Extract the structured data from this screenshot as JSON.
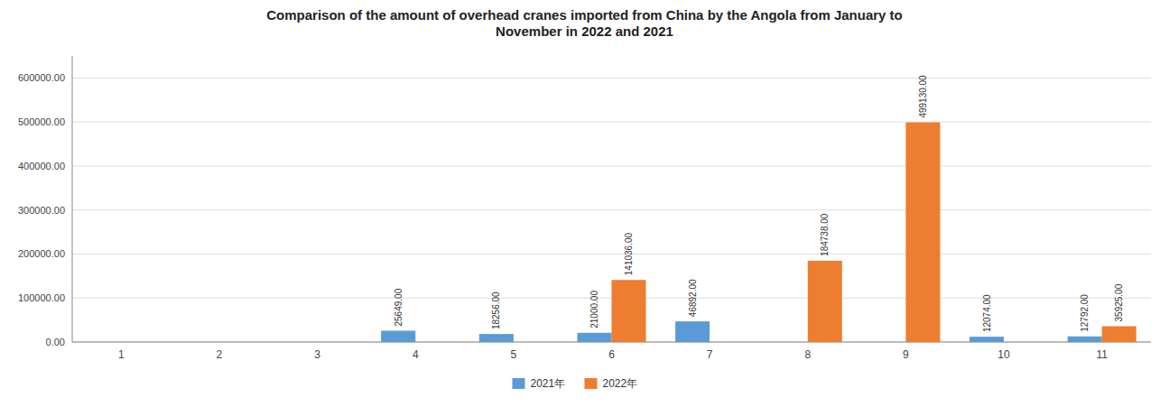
{
  "chart_data": {
    "type": "bar",
    "title": "Comparison of the amount of overhead cranes imported from China by the Angola from January to\nNovember in 2022 and 2021",
    "categories": [
      "1",
      "2",
      "3",
      "4",
      "5",
      "6",
      "7",
      "8",
      "9",
      "10",
      "11"
    ],
    "series": [
      {
        "name": "2021年",
        "color": "#5B9BD5",
        "values": [
          0,
          0,
          0,
          25649,
          18256,
          21000,
          46892,
          0,
          0,
          12074,
          12792
        ],
        "value_labels": [
          null,
          null,
          null,
          "25649.00",
          "18256.00",
          "21000.00",
          "46892.00",
          null,
          null,
          "12074.00",
          "12792.00"
        ]
      },
      {
        "name": "2022年",
        "color": "#ED7D31",
        "values": [
          0,
          0,
          0,
          0,
          0,
          141036,
          0,
          184738,
          499130,
          0,
          35925
        ],
        "value_labels": [
          null,
          null,
          null,
          null,
          null,
          "141036.00",
          null,
          "184738.00",
          "499130.00",
          null,
          "35925.00"
        ]
      }
    ],
    "ylim": [
      0,
      650000
    ],
    "yticks": [
      {
        "value": 0,
        "label": "0.00"
      },
      {
        "value": 100000,
        "label": "100000.00"
      },
      {
        "value": 200000,
        "label": "200000.00"
      },
      {
        "value": 300000,
        "label": "300000.00"
      },
      {
        "value": 400000,
        "label": "400000.00"
      },
      {
        "value": 500000,
        "label": "500000.00"
      },
      {
        "value": 600000,
        "label": "600000.00"
      }
    ],
    "grid": true,
    "data_labels": true,
    "legend": "bottom"
  }
}
